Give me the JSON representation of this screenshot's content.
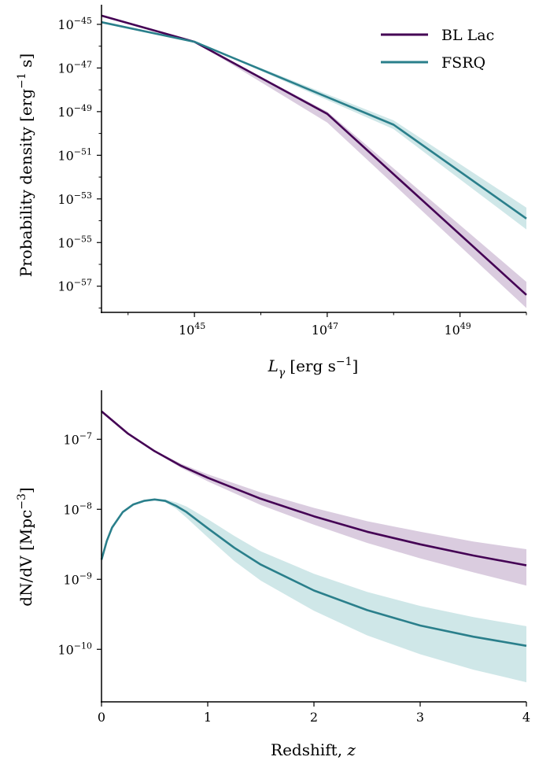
{
  "chart_data": [
    {
      "type": "line",
      "panel": "top",
      "xlabel_main": "L",
      "xlabel_sub": "γ",
      "xlabel_unit": "[erg s",
      "xlabel_unit_exp": "−1",
      "xlabel_unit_end": "]",
      "ylabel": "Probability density [erg",
      "ylabel_exp": "−1",
      "ylabel_end": " s]",
      "x_scale": "log",
      "y_scale": "log",
      "xlim_log10": [
        43.6,
        50.0
      ],
      "ylim_log10": [
        -58.2,
        -44.1
      ],
      "x_ticks": [
        {
          "base": "10",
          "exp": "45"
        },
        {
          "base": "10",
          "exp": "47"
        },
        {
          "base": "10",
          "exp": "49"
        }
      ],
      "y_ticks": [
        {
          "base": "10",
          "exp": "−45"
        },
        {
          "base": "10",
          "exp": "−47"
        },
        {
          "base": "10",
          "exp": "−49"
        },
        {
          "base": "10",
          "exp": "−51"
        },
        {
          "base": "10",
          "exp": "−53"
        },
        {
          "base": "10",
          "exp": "−55"
        },
        {
          "base": "10",
          "exp": "−57"
        }
      ],
      "x_tick_values_log10": [
        45,
        47,
        49
      ],
      "y_tick_values_log10": [
        -45,
        -47,
        -49,
        -51,
        -53,
        -55,
        -57
      ],
      "legend_position": "top-right",
      "series": [
        {
          "name": "BL Lac",
          "color": "#440154",
          "fill": "rgba(107, 52, 126, 0.25)",
          "log10_x": [
            43.6,
            45.0,
            47.0,
            50.0
          ],
          "log10_y": [
            -44.6,
            -45.8,
            -49.1,
            -57.4
          ],
          "band_lower_log10": [
            -44.6,
            -45.8,
            -49.5,
            -58.0
          ],
          "band_upper_log10": [
            -44.6,
            -45.8,
            -49.0,
            -56.8
          ]
        },
        {
          "name": "FSRQ",
          "color": "#2a7f8b",
          "fill": "rgba(83, 168, 171, 0.28)",
          "log10_x": [
            43.6,
            45.0,
            48.0,
            50.0
          ],
          "log10_y": [
            -44.9,
            -45.8,
            -49.6,
            -53.9
          ],
          "band_lower_log10": [
            -44.9,
            -45.8,
            -49.8,
            -54.4
          ],
          "band_upper_log10": [
            -44.9,
            -45.8,
            -49.4,
            -53.4
          ]
        }
      ]
    },
    {
      "type": "line",
      "panel": "bottom",
      "xlabel": "Redshift, ",
      "xlabel_var": "z",
      "ylabel": "dN/dV [Mpc",
      "ylabel_exp": "−3",
      "ylabel_end": "]",
      "x_scale": "linear",
      "y_scale": "log",
      "xlim": [
        0,
        4
      ],
      "ylim_log10": [
        -10.75,
        -6.3
      ],
      "x_ticks": [
        "0",
        "1",
        "2",
        "3",
        "4"
      ],
      "x_tick_values": [
        0,
        1,
        2,
        3,
        4
      ],
      "y_ticks": [
        {
          "base": "10",
          "exp": "−7"
        },
        {
          "base": "10",
          "exp": "−8"
        },
        {
          "base": "10",
          "exp": "−9"
        },
        {
          "base": "10",
          "exp": "−10"
        }
      ],
      "y_tick_values_log10": [
        -7,
        -8,
        -9,
        -10
      ],
      "series": [
        {
          "name": "BL Lac",
          "color": "#440154",
          "fill": "rgba(107, 52, 126, 0.25)",
          "x": [
            0,
            0.25,
            0.5,
            0.75,
            1.0,
            1.5,
            2.0,
            2.5,
            3.0,
            3.5,
            4.0
          ],
          "log10_y": [
            -6.6,
            -6.92,
            -7.17,
            -7.38,
            -7.55,
            -7.85,
            -8.1,
            -8.32,
            -8.5,
            -8.66,
            -8.8
          ],
          "band_lower_log10": [
            -6.6,
            -6.92,
            -7.18,
            -7.41,
            -7.6,
            -7.94,
            -8.22,
            -8.48,
            -8.7,
            -8.9,
            -9.09
          ],
          "band_upper_log10": [
            -6.6,
            -6.92,
            -7.16,
            -7.35,
            -7.5,
            -7.76,
            -7.98,
            -8.17,
            -8.32,
            -8.46,
            -8.57
          ]
        },
        {
          "name": "FSRQ",
          "color": "#2a7f8b",
          "fill": "rgba(83, 168, 171, 0.28)",
          "x": [
            0,
            0.05,
            0.1,
            0.2,
            0.3,
            0.4,
            0.5,
            0.6,
            0.7,
            0.8,
            1.0,
            1.25,
            1.5,
            2.0,
            2.5,
            3.0,
            3.5,
            4.0
          ],
          "log10_y": [
            -8.72,
            -8.45,
            -8.26,
            -8.04,
            -7.93,
            -7.88,
            -7.86,
            -7.88,
            -7.95,
            -8.04,
            -8.27,
            -8.55,
            -8.79,
            -9.16,
            -9.44,
            -9.66,
            -9.82,
            -9.95
          ],
          "band_lower_log10": [
            -8.72,
            -8.45,
            -8.26,
            -8.04,
            -7.93,
            -7.88,
            -7.87,
            -7.9,
            -7.99,
            -8.12,
            -8.4,
            -8.74,
            -9.02,
            -9.45,
            -9.8,
            -10.07,
            -10.29,
            -10.47
          ],
          "band_upper_log10": [
            -8.72,
            -8.45,
            -8.26,
            -8.04,
            -7.93,
            -7.88,
            -7.86,
            -7.86,
            -7.9,
            -7.96,
            -8.14,
            -8.38,
            -8.6,
            -8.92,
            -9.18,
            -9.38,
            -9.54,
            -9.67
          ]
        }
      ]
    }
  ]
}
